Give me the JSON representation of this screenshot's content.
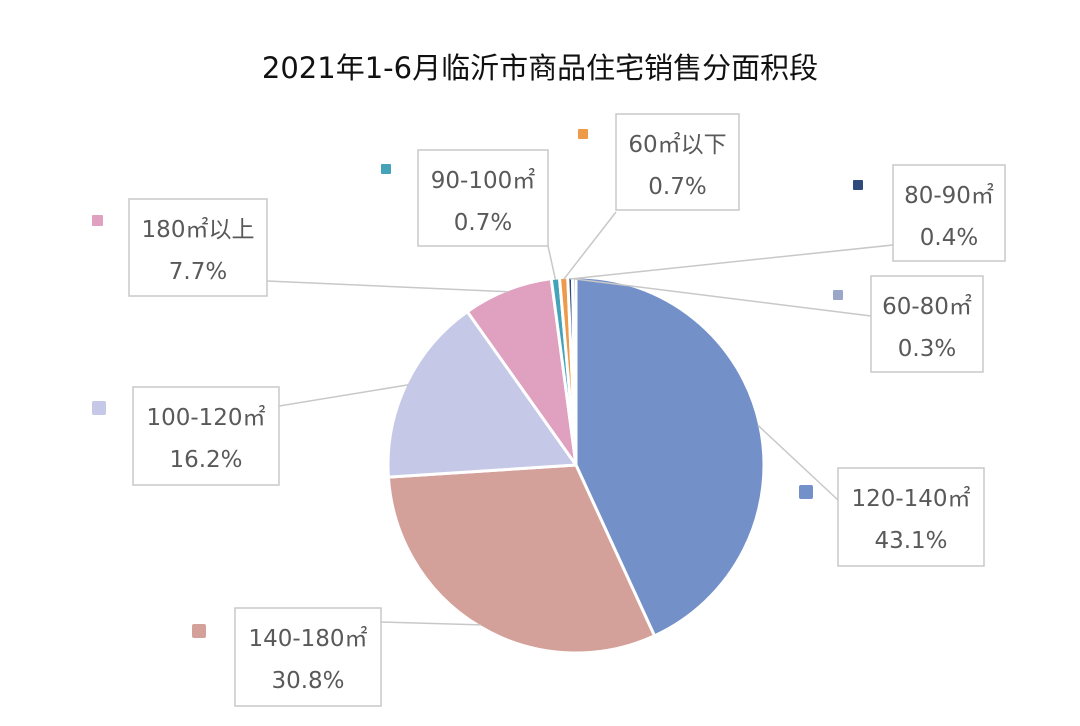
{
  "chart_data": {
    "type": "pie",
    "title": "2021年1-6月临沂市商品住宅销售分面积段",
    "slices": [
      {
        "label": "120-140㎡",
        "value": 43.1,
        "value_label": "43.1%",
        "color": "#7390c8"
      },
      {
        "label": "140-180㎡",
        "value": 30.8,
        "value_label": "30.8%",
        "color": "#d4a19a"
      },
      {
        "label": "100-120㎡",
        "value": 16.2,
        "value_label": "16.2%",
        "color": "#c5c8e6"
      },
      {
        "label": "180㎡以上",
        "value": 7.7,
        "value_label": "7.7%",
        "color": "#e0a0bf"
      },
      {
        "label": "90-100㎡",
        "value": 0.7,
        "value_label": "0.7%",
        "color": "#44a3b8"
      },
      {
        "label": "60㎡以下",
        "value": 0.7,
        "value_label": "0.7%",
        "color": "#ee9a4b"
      },
      {
        "label": "80-90㎡",
        "value": 0.4,
        "value_label": "0.4%",
        "color": "#2f4b7c"
      },
      {
        "label": "60-80㎡",
        "value": 0.3,
        "value_label": "0.3%",
        "color": "#9aa7c9"
      }
    ],
    "start": "12 o'clock",
    "direction": "clockwise",
    "label_style": "callout boxes with leader lines"
  }
}
